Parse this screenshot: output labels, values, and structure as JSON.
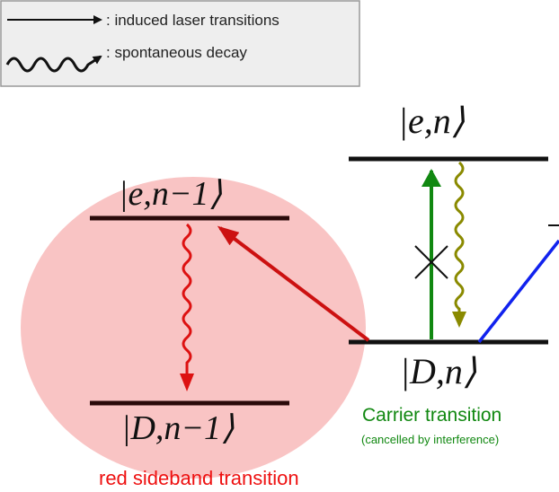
{
  "legend": {
    "laser_label": ": induced laser transitions",
    "decay_label": ": spontaneous decay"
  },
  "states": {
    "e_n": "|e,n⟩",
    "e_n_minus_1": "|e,n−1⟩",
    "D_n": "|D,n⟩",
    "D_n_minus_1": "|D,n−1⟩"
  },
  "captions": {
    "carrier": "Carrier transition",
    "carrier_note": "(cancelled by interference)",
    "red_sideband": "red sideband transition"
  },
  "colors": {
    "red_sideband": "#cc1111",
    "carrier": "#118811",
    "decay_carrier": "#8a8a00",
    "blue_sideband": "#1122ee",
    "highlight": "#f9c4c4"
  }
}
